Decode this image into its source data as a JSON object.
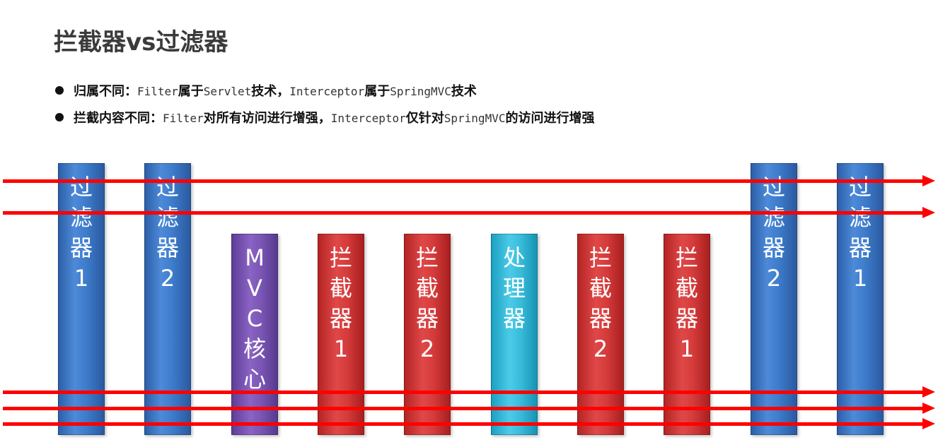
{
  "title": "拦截器vs过滤器",
  "bullets": [
    {
      "parts": [
        {
          "text": "归属不同：",
          "mono": false
        },
        {
          "text": "Filter",
          "mono": true
        },
        {
          "text": "属于",
          "mono": false
        },
        {
          "text": "Servlet",
          "mono": true
        },
        {
          "text": "技术，",
          "mono": false
        },
        {
          "text": "Interceptor",
          "mono": true
        },
        {
          "text": "属于",
          "mono": false
        },
        {
          "text": "SpringMVC",
          "mono": true
        },
        {
          "text": "技术",
          "mono": false
        }
      ]
    },
    {
      "parts": [
        {
          "text": "拦截内容不同：",
          "mono": false
        },
        {
          "text": "Filter",
          "mono": true
        },
        {
          "text": "对所有访问进行增强，",
          "mono": false
        },
        {
          "text": "Interceptor",
          "mono": true
        },
        {
          "text": "仅针对",
          "mono": false
        },
        {
          "text": "SpringMVC",
          "mono": true
        },
        {
          "text": "的访问进行增强",
          "mono": false
        }
      ]
    }
  ],
  "columns": [
    {
      "label": [
        "过",
        "滤",
        "器",
        "1"
      ],
      "color": "blue"
    },
    {
      "label": [
        "过",
        "滤",
        "器",
        "2"
      ],
      "color": "blue"
    },
    {
      "label": [
        "M",
        "V",
        "C",
        "核",
        "心"
      ],
      "color": "purple"
    },
    {
      "label": [
        "拦",
        "截",
        "器",
        "1"
      ],
      "color": "red"
    },
    {
      "label": [
        "拦",
        "截",
        "器",
        "2"
      ],
      "color": "red"
    },
    {
      "label": [
        "处",
        "理",
        "器"
      ],
      "color": "cyan"
    },
    {
      "label": [
        "拦",
        "截",
        "器",
        "2"
      ],
      "color": "red"
    },
    {
      "label": [
        "拦",
        "截",
        "器",
        "1"
      ],
      "color": "red"
    },
    {
      "label": [
        "过",
        "滤",
        "器",
        "2"
      ],
      "color": "blue"
    },
    {
      "label": [
        "过",
        "滤",
        "器",
        "1"
      ],
      "color": "blue"
    }
  ],
  "arrow_count": 5,
  "colors": {
    "filter": "#3e7ccc",
    "mvc_core": "#7a55b4",
    "interceptor": "#d43a3a",
    "handler": "#38bad9",
    "arrow": "#ff0000"
  }
}
